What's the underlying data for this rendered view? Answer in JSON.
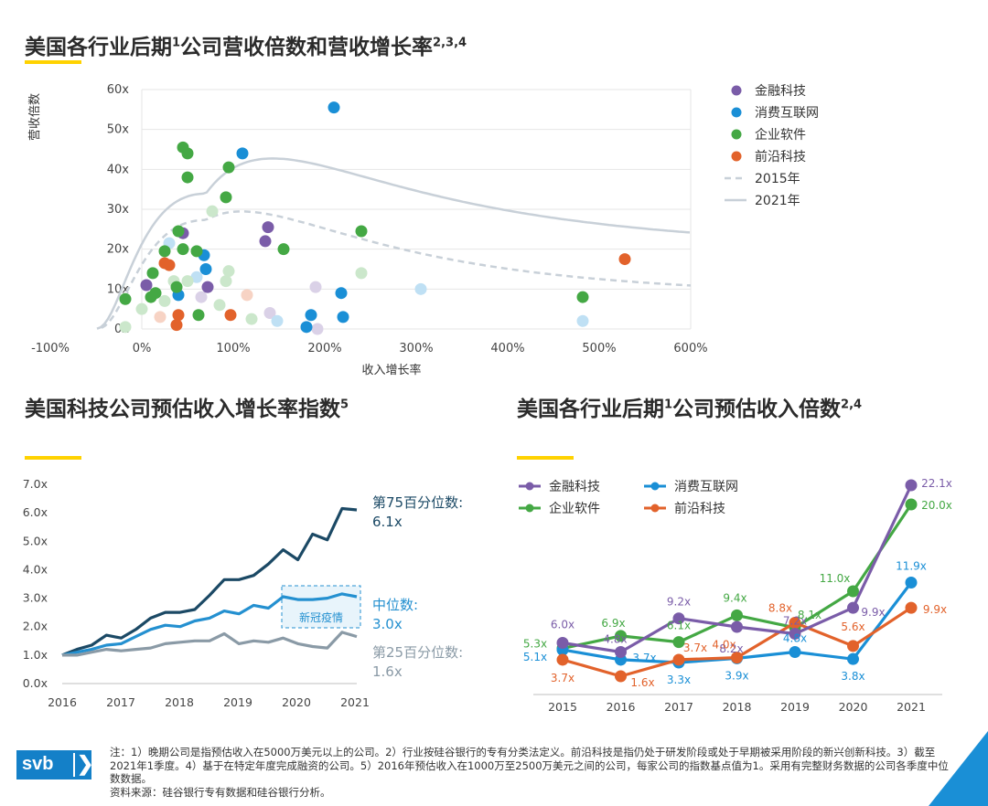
{
  "titles": {
    "top": "美国各行业后期",
    "top_sup1": "1",
    "top_rest": "公司营收倍数和营收增长率",
    "top_sup2": "2,3,4",
    "left": "美国科技公司预估收入增长率指数",
    "left_sup": "5",
    "right": "美国各行业后期",
    "right_sup1": "1",
    "right_rest": "公司预估收入倍数",
    "right_sup2": "2,4"
  },
  "colors": {
    "fintech": "#7a5ca8",
    "consumer": "#1a8fd6",
    "enterprise": "#44a844",
    "frontier": "#e2622b",
    "curve": "#c8d0d8",
    "accent": "#ffd200",
    "darkblue": "#1b4965",
    "midblue": "#2490d0",
    "gray": "#8a9aa6"
  },
  "chart_data": [
    {
      "type": "scatter",
      "xlabel": "收入增长率",
      "ylabel": "营收倍数",
      "xlim": [
        -100,
        600
      ],
      "ylim": [
        0,
        60
      ],
      "x_ticks": [
        "-100%",
        "0%",
        "100%",
        "200%",
        "300%",
        "400%",
        "500%",
        "600%"
      ],
      "y_ticks": [
        "0x",
        "10x",
        "20x",
        "30x",
        "40x",
        "50x",
        "60x"
      ],
      "legend": [
        "金融科技",
        "消费互联网",
        "企业软件",
        "前沿科技",
        "2015年",
        "2021年"
      ],
      "legend_position": "right",
      "series": [
        {
          "name": "金融科技",
          "points": [
            [
              5,
              11
            ],
            [
              45,
              24
            ],
            [
              72,
              10.5
            ],
            [
              135,
              22
            ],
            [
              138,
              25.5
            ],
            [
              190,
              10.5
            ],
            [
              65,
              8
            ],
            [
              140,
              4
            ],
            [
              192,
              0
            ]
          ],
          "faded": [
            false,
            false,
            false,
            false,
            false,
            true,
            true,
            true,
            true
          ]
        },
        {
          "name": "消费互联网",
          "points": [
            [
              210,
              55.5
            ],
            [
              110,
              44
            ],
            [
              68,
              18.5
            ],
            [
              70,
              15
            ],
            [
              40,
              8.5
            ],
            [
              218,
              9
            ],
            [
              185,
              3.5
            ],
            [
              180,
              0.5
            ],
            [
              220,
              3
            ],
            [
              30,
              21.5
            ],
            [
              60,
              13
            ],
            [
              148,
              2
            ],
            [
              305,
              10
            ],
            [
              482,
              2
            ]
          ],
          "faded": [
            false,
            false,
            false,
            false,
            false,
            false,
            false,
            false,
            false,
            true,
            true,
            true,
            true,
            true
          ]
        },
        {
          "name": "企业软件",
          "points": [
            [
              45,
              45.5
            ],
            [
              50,
              44
            ],
            [
              50,
              38
            ],
            [
              95,
              40.5
            ],
            [
              92,
              33
            ],
            [
              240,
              24.5
            ],
            [
              155,
              20
            ],
            [
              40,
              24.5
            ],
            [
              45,
              20
            ],
            [
              60,
              19.5
            ],
            [
              25,
              19.5
            ],
            [
              12,
              14
            ],
            [
              -18,
              7.5
            ],
            [
              10,
              8
            ],
            [
              15,
              9
            ],
            [
              38,
              10.5
            ],
            [
              62,
              3.5
            ],
            [
              482,
              8
            ],
            [
              77,
              29.5
            ],
            [
              95,
              14.5
            ],
            [
              240,
              14
            ],
            [
              35,
              12
            ],
            [
              50,
              12
            ],
            [
              92,
              12
            ],
            [
              0,
              5
            ],
            [
              -18,
              0.5
            ],
            [
              85,
              6
            ],
            [
              120,
              2.5
            ],
            [
              25,
              7
            ]
          ],
          "faded": [
            false,
            false,
            false,
            false,
            false,
            false,
            false,
            false,
            false,
            false,
            false,
            false,
            false,
            false,
            false,
            false,
            false,
            false,
            true,
            true,
            true,
            true,
            true,
            true,
            true,
            true,
            true,
            true,
            true
          ]
        },
        {
          "name": "前沿科技",
          "points": [
            [
              25,
              16.5
            ],
            [
              30,
              16
            ],
            [
              40,
              3.5
            ],
            [
              38,
              1
            ],
            [
              97,
              3.5
            ],
            [
              528,
              17.5
            ],
            [
              20,
              3
            ],
            [
              115,
              8.5
            ]
          ],
          "faded": [
            false,
            false,
            false,
            false,
            false,
            false,
            true,
            true
          ]
        }
      ]
    },
    {
      "type": "line",
      "title": "美国科技公司预估收入增长率指数",
      "x_ticks": [
        "2016",
        "2017",
        "2018",
        "2019",
        "2020",
        "2021"
      ],
      "y_ticks": [
        "0.0x",
        "1.0x",
        "2.0x",
        "3.0x",
        "4.0x",
        "5.0x",
        "6.0x",
        "7.0x"
      ],
      "ylim": [
        0,
        7
      ],
      "annotation": "新冠疫情",
      "series": [
        {
          "name": "第75百分位数:",
          "end_label": "6.1x",
          "values": [
            1.0,
            1.2,
            1.35,
            1.7,
            1.6,
            1.9,
            2.3,
            2.5,
            2.5,
            2.6,
            3.1,
            3.65,
            3.65,
            3.8,
            4.2,
            4.7,
            4.35,
            5.25,
            5.05,
            6.15,
            6.1
          ]
        },
        {
          "name": "中位数:",
          "end_label": "3.0x",
          "values": [
            1.0,
            1.1,
            1.2,
            1.35,
            1.4,
            1.65,
            1.9,
            2.05,
            2.0,
            2.2,
            2.3,
            2.55,
            2.45,
            2.75,
            2.65,
            3.05,
            2.95,
            2.95,
            3.0,
            3.15,
            3.05
          ]
        },
        {
          "name": "第25百分位数:",
          "end_label": "1.6x",
          "values": [
            1.0,
            1.0,
            1.1,
            1.2,
            1.15,
            1.2,
            1.25,
            1.4,
            1.45,
            1.5,
            1.5,
            1.75,
            1.4,
            1.5,
            1.45,
            1.6,
            1.4,
            1.3,
            1.25,
            1.8,
            1.65
          ]
        }
      ]
    },
    {
      "type": "line",
      "title": "美国各行业后期公司预估收入倍数",
      "categories": [
        "2015",
        "2016",
        "2017",
        "2018",
        "2019",
        "2020",
        "2021"
      ],
      "legend": [
        "金融科技",
        "消费互联网",
        "企业软件",
        "前沿科技"
      ],
      "series": [
        {
          "name": "金融科技",
          "values": [
            6.0,
            4.8,
            9.2,
            8.2,
            7.2,
            9.9,
            22.1
          ],
          "labels": [
            "6.0x",
            "4.8x",
            "9.2x",
            "8.2x",
            "7.2x",
            "9.9x",
            "22.1x"
          ]
        },
        {
          "name": "消费互联网",
          "values": [
            5.1,
            3.7,
            3.3,
            3.9,
            4.8,
            3.8,
            11.9
          ],
          "labels": [
            "5.1x",
            "3.7x",
            "3.3x",
            "3.9x",
            "4.8x",
            "3.8x",
            "11.9x"
          ]
        },
        {
          "name": "企业软件",
          "values": [
            5.3,
            6.9,
            6.1,
            9.4,
            8.1,
            11.0,
            20.0
          ],
          "labels": [
            "5.3x",
            "6.9x",
            "6.1x",
            "9.4x",
            "8.1x",
            "11.0x",
            "20.0x"
          ]
        },
        {
          "name": "前沿科技",
          "values": [
            3.7,
            1.6,
            3.7,
            4.0,
            8.8,
            5.6,
            9.9
          ],
          "labels": [
            "3.7x",
            "1.6x",
            "3.7x",
            "4.0x",
            "8.8x",
            "5.6x",
            "9.9x"
          ]
        }
      ]
    }
  ],
  "footer": {
    "line1": "注：1）晚期公司是指预估收入在5000万美元以上的公司。2）行业按硅谷银行的专有分类法定义。前沿科技是指仍处于研发阶段或处于早期被采用阶段的新兴创新科技。3）截至2021年1季度。4）基于在特定年度完成融资的公司。5）2016年预估收入在1000万至2500万美元之间的公司，每家公司的指数基点值为1。采用有完整财务数据的公司各季度中位数数据。",
    "line2": "资料来源：硅谷银行专有数据和硅谷银行分析。"
  },
  "logo": {
    "text": "svb",
    "chevron": "❯"
  }
}
